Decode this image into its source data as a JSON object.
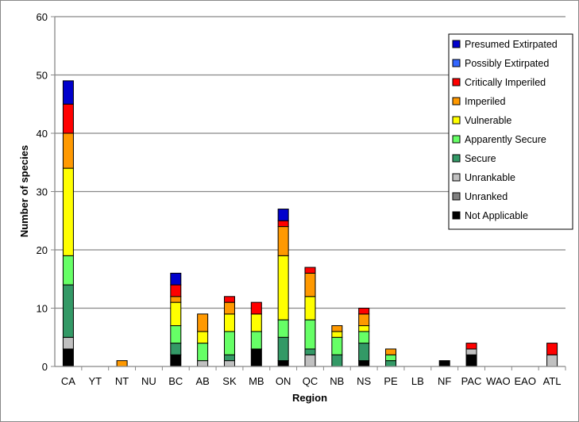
{
  "chart_data": {
    "type": "bar",
    "stacked": true,
    "xlabel": "Region",
    "ylabel": "Number of species",
    "ylim": [
      0,
      60
    ],
    "yticks": [
      0,
      10,
      20,
      30,
      40,
      50,
      60
    ],
    "grid": true,
    "legend_position": "top-right",
    "categories": [
      "CA",
      "YT",
      "NT",
      "NU",
      "BC",
      "AB",
      "SK",
      "MB",
      "ON",
      "QC",
      "NB",
      "NS",
      "PE",
      "LB",
      "NF",
      "PAC",
      "WAO",
      "EAO",
      "ATL"
    ],
    "series": [
      {
        "name": "Not Applicable",
        "color": "#000000",
        "values": [
          3,
          0,
          0,
          0,
          2,
          0,
          0,
          3,
          1,
          0,
          0,
          1,
          0,
          0,
          1,
          2,
          0,
          0,
          0
        ]
      },
      {
        "name": "Unranked",
        "color": "#808080",
        "values": [
          0,
          0,
          0,
          0,
          0,
          0,
          0,
          0,
          0,
          0,
          0,
          0,
          0,
          0,
          0,
          0,
          0,
          0,
          0
        ]
      },
      {
        "name": "Unrankable",
        "color": "#c0c0c0",
        "values": [
          2,
          0,
          0,
          0,
          0,
          1,
          1,
          0,
          0,
          2,
          0,
          0,
          0,
          0,
          0,
          1,
          0,
          0,
          2
        ]
      },
      {
        "name": "Secure",
        "color": "#339966",
        "values": [
          9,
          0,
          0,
          0,
          2,
          0,
          1,
          0,
          4,
          1,
          2,
          3,
          1,
          0,
          0,
          0,
          0,
          0,
          0
        ]
      },
      {
        "name": "Apparently Secure",
        "color": "#66ff66",
        "values": [
          5,
          0,
          0,
          0,
          3,
          3,
          4,
          3,
          3,
          5,
          3,
          2,
          1,
          0,
          0,
          0,
          0,
          0,
          0
        ]
      },
      {
        "name": "Vulnerable",
        "color": "#ffff00",
        "values": [
          15,
          0,
          0,
          0,
          4,
          2,
          3,
          3,
          11,
          4,
          1,
          1,
          0,
          0,
          0,
          0,
          0,
          0,
          0
        ]
      },
      {
        "name": "Imperiled",
        "color": "#ff9900",
        "values": [
          6,
          0,
          1,
          0,
          1,
          3,
          2,
          0,
          5,
          4,
          1,
          2,
          1,
          0,
          0,
          0,
          0,
          0,
          0
        ]
      },
      {
        "name": "Critically Imperiled",
        "color": "#ff0000",
        "values": [
          5,
          0,
          0,
          0,
          2,
          0,
          1,
          2,
          1,
          1,
          0,
          1,
          0,
          0,
          0,
          1,
          0,
          0,
          2
        ]
      },
      {
        "name": "Possibly Extirpated",
        "color": "#3366ff",
        "values": [
          0,
          0,
          0,
          0,
          0,
          0,
          0,
          0,
          0,
          0,
          0,
          0,
          0,
          0,
          0,
          0,
          0,
          0,
          0
        ]
      },
      {
        "name": "Presumed Extirpated",
        "color": "#0000cc",
        "values": [
          4,
          0,
          0,
          0,
          2,
          0,
          0,
          0,
          2,
          0,
          0,
          0,
          0,
          0,
          0,
          0,
          0,
          0,
          0
        ]
      }
    ]
  }
}
